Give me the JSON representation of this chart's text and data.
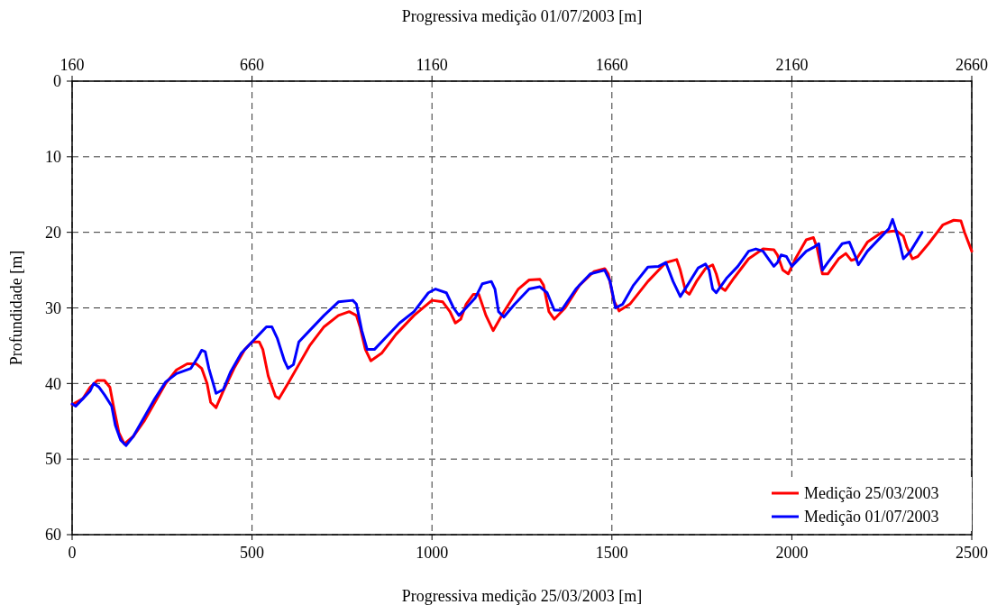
{
  "chart_data": {
    "type": "line",
    "xlabel": "Progressiva medição 25/03/2003 [m]",
    "x2label": "Progressiva medição 01/07/2003 [m]",
    "ylabel": "Profundidade [m]",
    "xlim": [
      0,
      2500
    ],
    "xticks": [
      0,
      500,
      1000,
      1500,
      2000,
      2500
    ],
    "x2lim": [
      160,
      2660
    ],
    "x2ticks": [
      160,
      660,
      1160,
      1660,
      2160,
      2660
    ],
    "ylim": [
      60,
      0
    ],
    "yticks": [
      0,
      10,
      20,
      30,
      40,
      50,
      60
    ],
    "grid": true,
    "legend": "bottom right",
    "line_style": "solid",
    "marker": "none",
    "series": [
      {
        "name": "Medição 25/03/2003",
        "color": "#ff0000",
        "x": [
          0,
          30,
          50,
          70,
          90,
          105,
          115,
          130,
          145,
          170,
          200,
          230,
          260,
          290,
          320,
          345,
          360,
          375,
          385,
          400,
          420,
          450,
          480,
          500,
          520,
          530,
          545,
          565,
          575,
          600,
          630,
          660,
          700,
          740,
          770,
          790,
          800,
          815,
          830,
          860,
          900,
          950,
          1000,
          1030,
          1050,
          1065,
          1080,
          1095,
          1115,
          1130,
          1150,
          1170,
          1200,
          1240,
          1270,
          1300,
          1310,
          1325,
          1340,
          1370,
          1410,
          1450,
          1480,
          1490,
          1505,
          1520,
          1550,
          1600,
          1650,
          1680,
          1690,
          1705,
          1715,
          1735,
          1760,
          1780,
          1790,
          1800,
          1815,
          1840,
          1880,
          1920,
          1950,
          1960,
          1975,
          1990,
          2010,
          2040,
          2060,
          2070,
          2085,
          2100,
          2130,
          2150,
          2165,
          2180,
          2210,
          2250,
          2290,
          2310,
          2320,
          2335,
          2350,
          2380,
          2420,
          2450,
          2470,
          2480,
          2500
        ],
        "values": [
          42.8,
          42,
          40.5,
          39.6,
          39.6,
          40.5,
          43,
          46.5,
          48,
          47,
          45,
          42.5,
          40,
          38.2,
          37.4,
          37.4,
          38,
          40,
          42.5,
          43.2,
          41,
          38,
          35.5,
          34.5,
          34.5,
          35.5,
          39,
          41.7,
          42,
          40,
          37.5,
          35,
          32.5,
          31,
          30.5,
          31,
          32.5,
          35.5,
          37,
          36,
          33.5,
          31,
          29,
          29.2,
          30.5,
          32,
          31.5,
          29.5,
          28.2,
          28.2,
          31,
          33,
          30.5,
          27.5,
          26.3,
          26.2,
          27,
          30.5,
          31.5,
          30,
          27,
          25.2,
          24.8,
          25.5,
          29,
          30.4,
          29.5,
          26.5,
          24,
          23.6,
          25,
          27.8,
          28.2,
          26.5,
          24.8,
          24.3,
          25.5,
          27.2,
          27.7,
          26,
          23.5,
          22.2,
          22.3,
          23,
          25,
          25.5,
          23.5,
          21,
          20.7,
          22,
          25.5,
          25.5,
          23.5,
          22.8,
          23.7,
          23.5,
          21.3,
          20,
          19.8,
          20.5,
          22,
          23.5,
          23.2,
          21.5,
          19,
          18.4,
          18.5,
          20,
          22.5
        ]
      },
      {
        "name": "Medição 01/07/2003",
        "color": "#0000ff",
        "x": [
          0,
          10,
          30,
          50,
          60,
          75,
          90,
          110,
          120,
          135,
          150,
          170,
          200,
          230,
          260,
          290,
          330,
          350,
          360,
          370,
          380,
          400,
          420,
          440,
          470,
          500,
          520,
          540,
          555,
          570,
          590,
          600,
          615,
          630,
          660,
          700,
          740,
          780,
          790,
          805,
          820,
          840,
          870,
          910,
          950,
          990,
          1010,
          1040,
          1060,
          1075,
          1095,
          1120,
          1140,
          1165,
          1175,
          1185,
          1200,
          1230,
          1270,
          1300,
          1320,
          1340,
          1360,
          1400,
          1440,
          1480,
          1495,
          1510,
          1530,
          1560,
          1600,
          1630,
          1650,
          1670,
          1690,
          1710,
          1740,
          1760,
          1770,
          1780,
          1790,
          1820,
          1850,
          1880,
          1900,
          1920,
          1935,
          1950,
          1960,
          1970,
          1985,
          2000,
          2040,
          2060,
          2075,
          2085,
          2100,
          2140,
          2160,
          2175,
          2185,
          2210,
          2250,
          2270,
          2280,
          2290,
          2300,
          2310,
          2330,
          2362
        ],
        "values": [
          42.7,
          43,
          42,
          41,
          40,
          40.5,
          41.5,
          43,
          45.5,
          47.5,
          48.2,
          47,
          44.5,
          42,
          39.8,
          38.7,
          38,
          36.5,
          35.6,
          35.8,
          38,
          41.3,
          40.8,
          38.5,
          36,
          34.5,
          33.5,
          32.5,
          32.5,
          34,
          37,
          38,
          37.5,
          34.5,
          33,
          31,
          29.2,
          29,
          29.5,
          33,
          35.5,
          35.5,
          34,
          32,
          30.5,
          28,
          27.5,
          28,
          30,
          31,
          30,
          28.7,
          26.8,
          26.5,
          27.5,
          30.5,
          31.2,
          29.5,
          27.5,
          27.2,
          28,
          30.3,
          30.3,
          27.5,
          25.5,
          25,
          26.5,
          30,
          29.5,
          27,
          24.6,
          24.5,
          24,
          26.5,
          28.5,
          27,
          24.7,
          24.2,
          25,
          27.5,
          28,
          26,
          24.5,
          22.5,
          22.2,
          22.5,
          23.5,
          24.5,
          24,
          23,
          23.2,
          24.5,
          22.5,
          22,
          21.5,
          25,
          24,
          21.5,
          21.3,
          23,
          24.3,
          22.5,
          20.5,
          19.5,
          18.3,
          19.8,
          21.5,
          23.5,
          22.5,
          20
        ]
      }
    ]
  }
}
